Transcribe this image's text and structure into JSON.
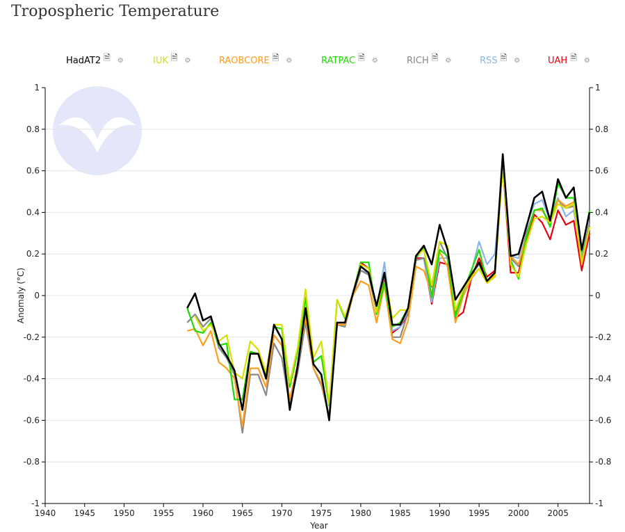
{
  "title": "Tropospheric Temperature",
  "chart_data": {
    "type": "line",
    "title": "Tropospheric Temperature",
    "xlabel": "Year",
    "ylabel": "Anomaly (°C)",
    "xlim": [
      1940,
      2009
    ],
    "ylim": [
      -1,
      1
    ],
    "xticks": [
      1940,
      1945,
      1950,
      1955,
      1960,
      1965,
      1970,
      1975,
      1980,
      1985,
      1990,
      1995,
      2000,
      2005
    ],
    "yticks": [
      -1,
      -0.8,
      -0.6,
      -0.4,
      -0.2,
      0,
      0.2,
      0.4,
      0.6,
      0.8,
      1
    ],
    "ytick_labels": [
      "-1",
      "-0.8",
      "-0.6",
      "-0.4",
      "-0.2",
      "0",
      "0.2",
      "0.4",
      "0.6",
      "0.8",
      "1"
    ],
    "grid": "horizontal",
    "legend": "top",
    "series": [
      {
        "name": "HadAT2",
        "color": "#000000",
        "start": 1958,
        "values": [
          -0.06,
          0.01,
          -0.12,
          -0.1,
          -0.23,
          -0.29,
          -0.36,
          -0.55,
          -0.28,
          -0.28,
          -0.4,
          -0.14,
          -0.21,
          -0.55,
          -0.34,
          -0.06,
          -0.33,
          -0.38,
          -0.6,
          -0.13,
          -0.13,
          0.01,
          0.14,
          0.11,
          -0.05,
          0.11,
          -0.14,
          -0.14,
          -0.06,
          0.19,
          0.24,
          0.15,
          0.34,
          0.22,
          -0.02,
          0.04,
          0.1,
          0.16,
          0.07,
          0.11,
          0.68,
          0.19,
          0.2,
          0.33,
          0.47,
          0.5,
          0.36,
          0.56,
          0.47,
          0.52,
          0.22,
          0.4
        ]
      },
      {
        "name": "IUK",
        "color": "#d6e000",
        "start": 1959,
        "values": [
          -0.1,
          -0.17,
          -0.14,
          -0.22,
          -0.19,
          -0.37,
          -0.4,
          -0.22,
          -0.26,
          -0.37,
          -0.14,
          -0.14,
          -0.42,
          -0.25,
          0.03,
          -0.3,
          -0.22,
          -0.52,
          -0.02,
          -0.1,
          0.01,
          0.15,
          0.13,
          -0.08,
          0.11,
          -0.11,
          -0.07,
          -0.07,
          0.19,
          0.22,
          0.05,
          0.26,
          0.24,
          -0.07,
          0.03,
          0.09,
          0.13,
          0.06,
          0.09,
          0.62,
          0.15,
          0.09,
          0.25,
          0.37,
          0.38,
          0.35,
          0.44,
          0.42,
          0.44,
          0.16,
          0.33
        ]
      },
      {
        "name": "RAOBCORE",
        "color": "#ff9d1e",
        "start": 1958,
        "values": [
          -0.17,
          -0.16,
          -0.24,
          -0.17,
          -0.32,
          -0.35,
          -0.4,
          -0.63,
          -0.35,
          -0.35,
          -0.44,
          -0.19,
          -0.24,
          -0.5,
          -0.33,
          -0.1,
          -0.35,
          -0.42,
          -0.58,
          -0.14,
          -0.14,
          0.0,
          0.07,
          0.05,
          -0.13,
          0.05,
          -0.21,
          -0.23,
          -0.12,
          0.14,
          0.12,
          0.01,
          0.21,
          0.14,
          -0.13,
          0.0,
          0.08,
          0.13,
          0.06,
          0.1,
          0.62,
          0.19,
          0.15,
          0.28,
          0.41,
          0.41,
          0.35,
          0.46,
          0.43,
          0.45,
          0.15,
          0.33
        ]
      },
      {
        "name": "RATPAC",
        "color": "#1edc00",
        "start": 1958,
        "values": [
          -0.06,
          -0.17,
          -0.18,
          -0.13,
          -0.24,
          -0.23,
          -0.5,
          -0.5,
          -0.27,
          -0.28,
          -0.38,
          -0.15,
          -0.16,
          -0.44,
          -0.27,
          -0.01,
          -0.32,
          -0.29,
          -0.53,
          -0.02,
          -0.11,
          0.01,
          0.16,
          0.16,
          -0.09,
          0.06,
          -0.15,
          -0.13,
          -0.06,
          0.18,
          0.23,
          -0.01,
          0.22,
          0.19,
          -0.1,
          0.02,
          0.12,
          0.22,
          0.07,
          0.11,
          0.64,
          0.17,
          0.08,
          0.28,
          0.41,
          0.42,
          0.33,
          0.54,
          0.47,
          0.47,
          0.21,
          0.41
        ]
      },
      {
        "name": "RICH",
        "color": "#888888",
        "start": 1958,
        "values": [
          -0.13,
          -0.09,
          -0.15,
          -0.11,
          -0.25,
          -0.3,
          -0.38,
          -0.66,
          -0.38,
          -0.38,
          -0.48,
          -0.23,
          -0.3,
          -0.53,
          -0.37,
          -0.13,
          -0.35,
          -0.43,
          -0.58,
          -0.14,
          -0.15,
          0.0,
          0.12,
          0.1,
          -0.08,
          0.1,
          -0.2,
          -0.2,
          -0.08,
          0.17,
          0.18,
          0.04,
          0.26,
          0.18,
          -0.09,
          0.02,
          0.1,
          0.15,
          0.07,
          0.1,
          0.66,
          0.18,
          0.14,
          0.3,
          0.41,
          0.41,
          0.35,
          0.46,
          0.42,
          0.43,
          0.17,
          0.35
        ]
      },
      {
        "name": "RSS",
        "color": "#8cb4e8",
        "start": 1979,
        "values": [
          0.0,
          0.12,
          0.11,
          -0.07,
          0.16,
          -0.17,
          -0.15,
          -0.07,
          0.17,
          0.18,
          -0.03,
          0.18,
          0.18,
          -0.1,
          0.02,
          0.11,
          0.26,
          0.15,
          0.2,
          0.62,
          0.19,
          0.18,
          0.34,
          0.44,
          0.46,
          0.36,
          0.47,
          0.38,
          0.41,
          0.19,
          0.35
        ]
      },
      {
        "name": "UAH",
        "color": "#e8000f",
        "start": 1979,
        "values": [
          0.0,
          0.16,
          0.13,
          -0.08,
          0.09,
          -0.18,
          -0.15,
          -0.09,
          0.18,
          0.18,
          -0.04,
          0.16,
          0.15,
          -0.11,
          -0.08,
          0.08,
          0.18,
          0.09,
          0.12,
          0.62,
          0.11,
          0.11,
          0.27,
          0.39,
          0.35,
          0.27,
          0.41,
          0.34,
          0.36,
          0.12,
          0.3
        ]
      }
    ]
  },
  "legend_icons": {
    "doc": "document-icon",
    "settings": "gear-icon"
  }
}
